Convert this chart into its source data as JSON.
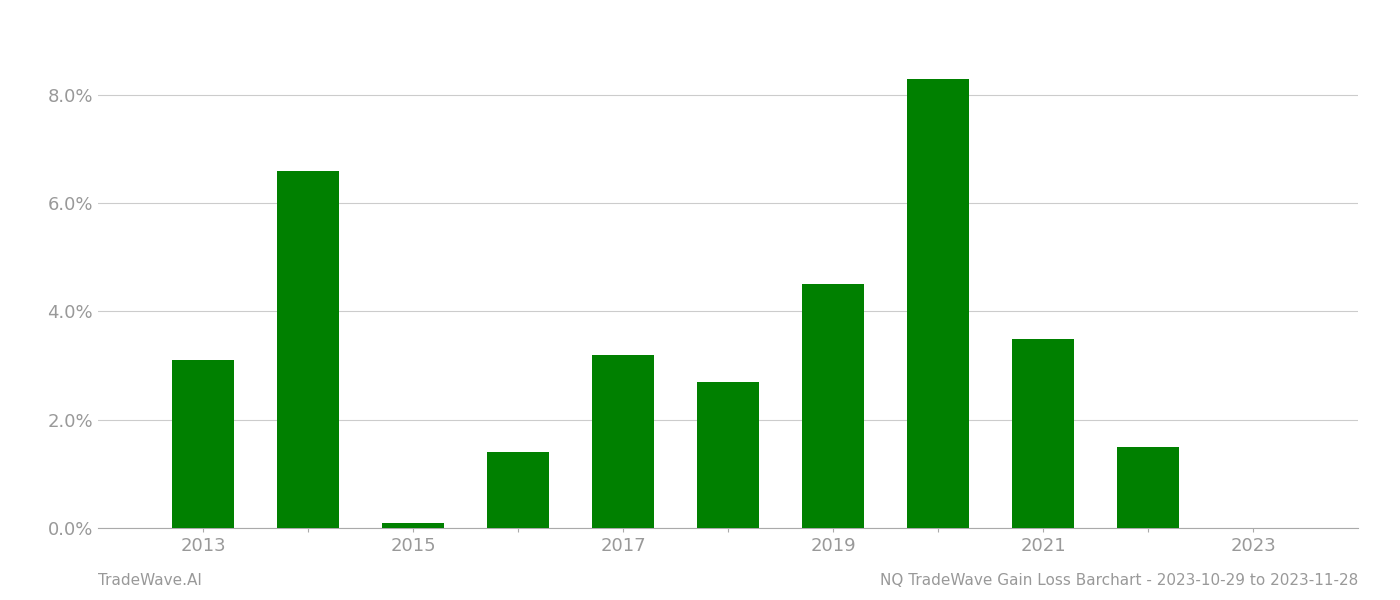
{
  "years": [
    2013,
    2014,
    2015,
    2016,
    2017,
    2018,
    2019,
    2020,
    2021,
    2022,
    2023
  ],
  "values": [
    0.031,
    0.066,
    0.001,
    0.014,
    0.032,
    0.027,
    0.045,
    0.083,
    0.035,
    0.015,
    0.0
  ],
  "bar_color": "#008000",
  "background_color": "#ffffff",
  "ylim": [
    0,
    0.092
  ],
  "yticks": [
    0.0,
    0.02,
    0.04,
    0.06,
    0.08
  ],
  "grid_color": "#cccccc",
  "footer_left": "TradeWave.AI",
  "footer_right": "NQ TradeWave Gain Loss Barchart - 2023-10-29 to 2023-11-28",
  "footer_fontsize": 11,
  "tick_fontsize": 13,
  "axis_label_color": "#999999"
}
